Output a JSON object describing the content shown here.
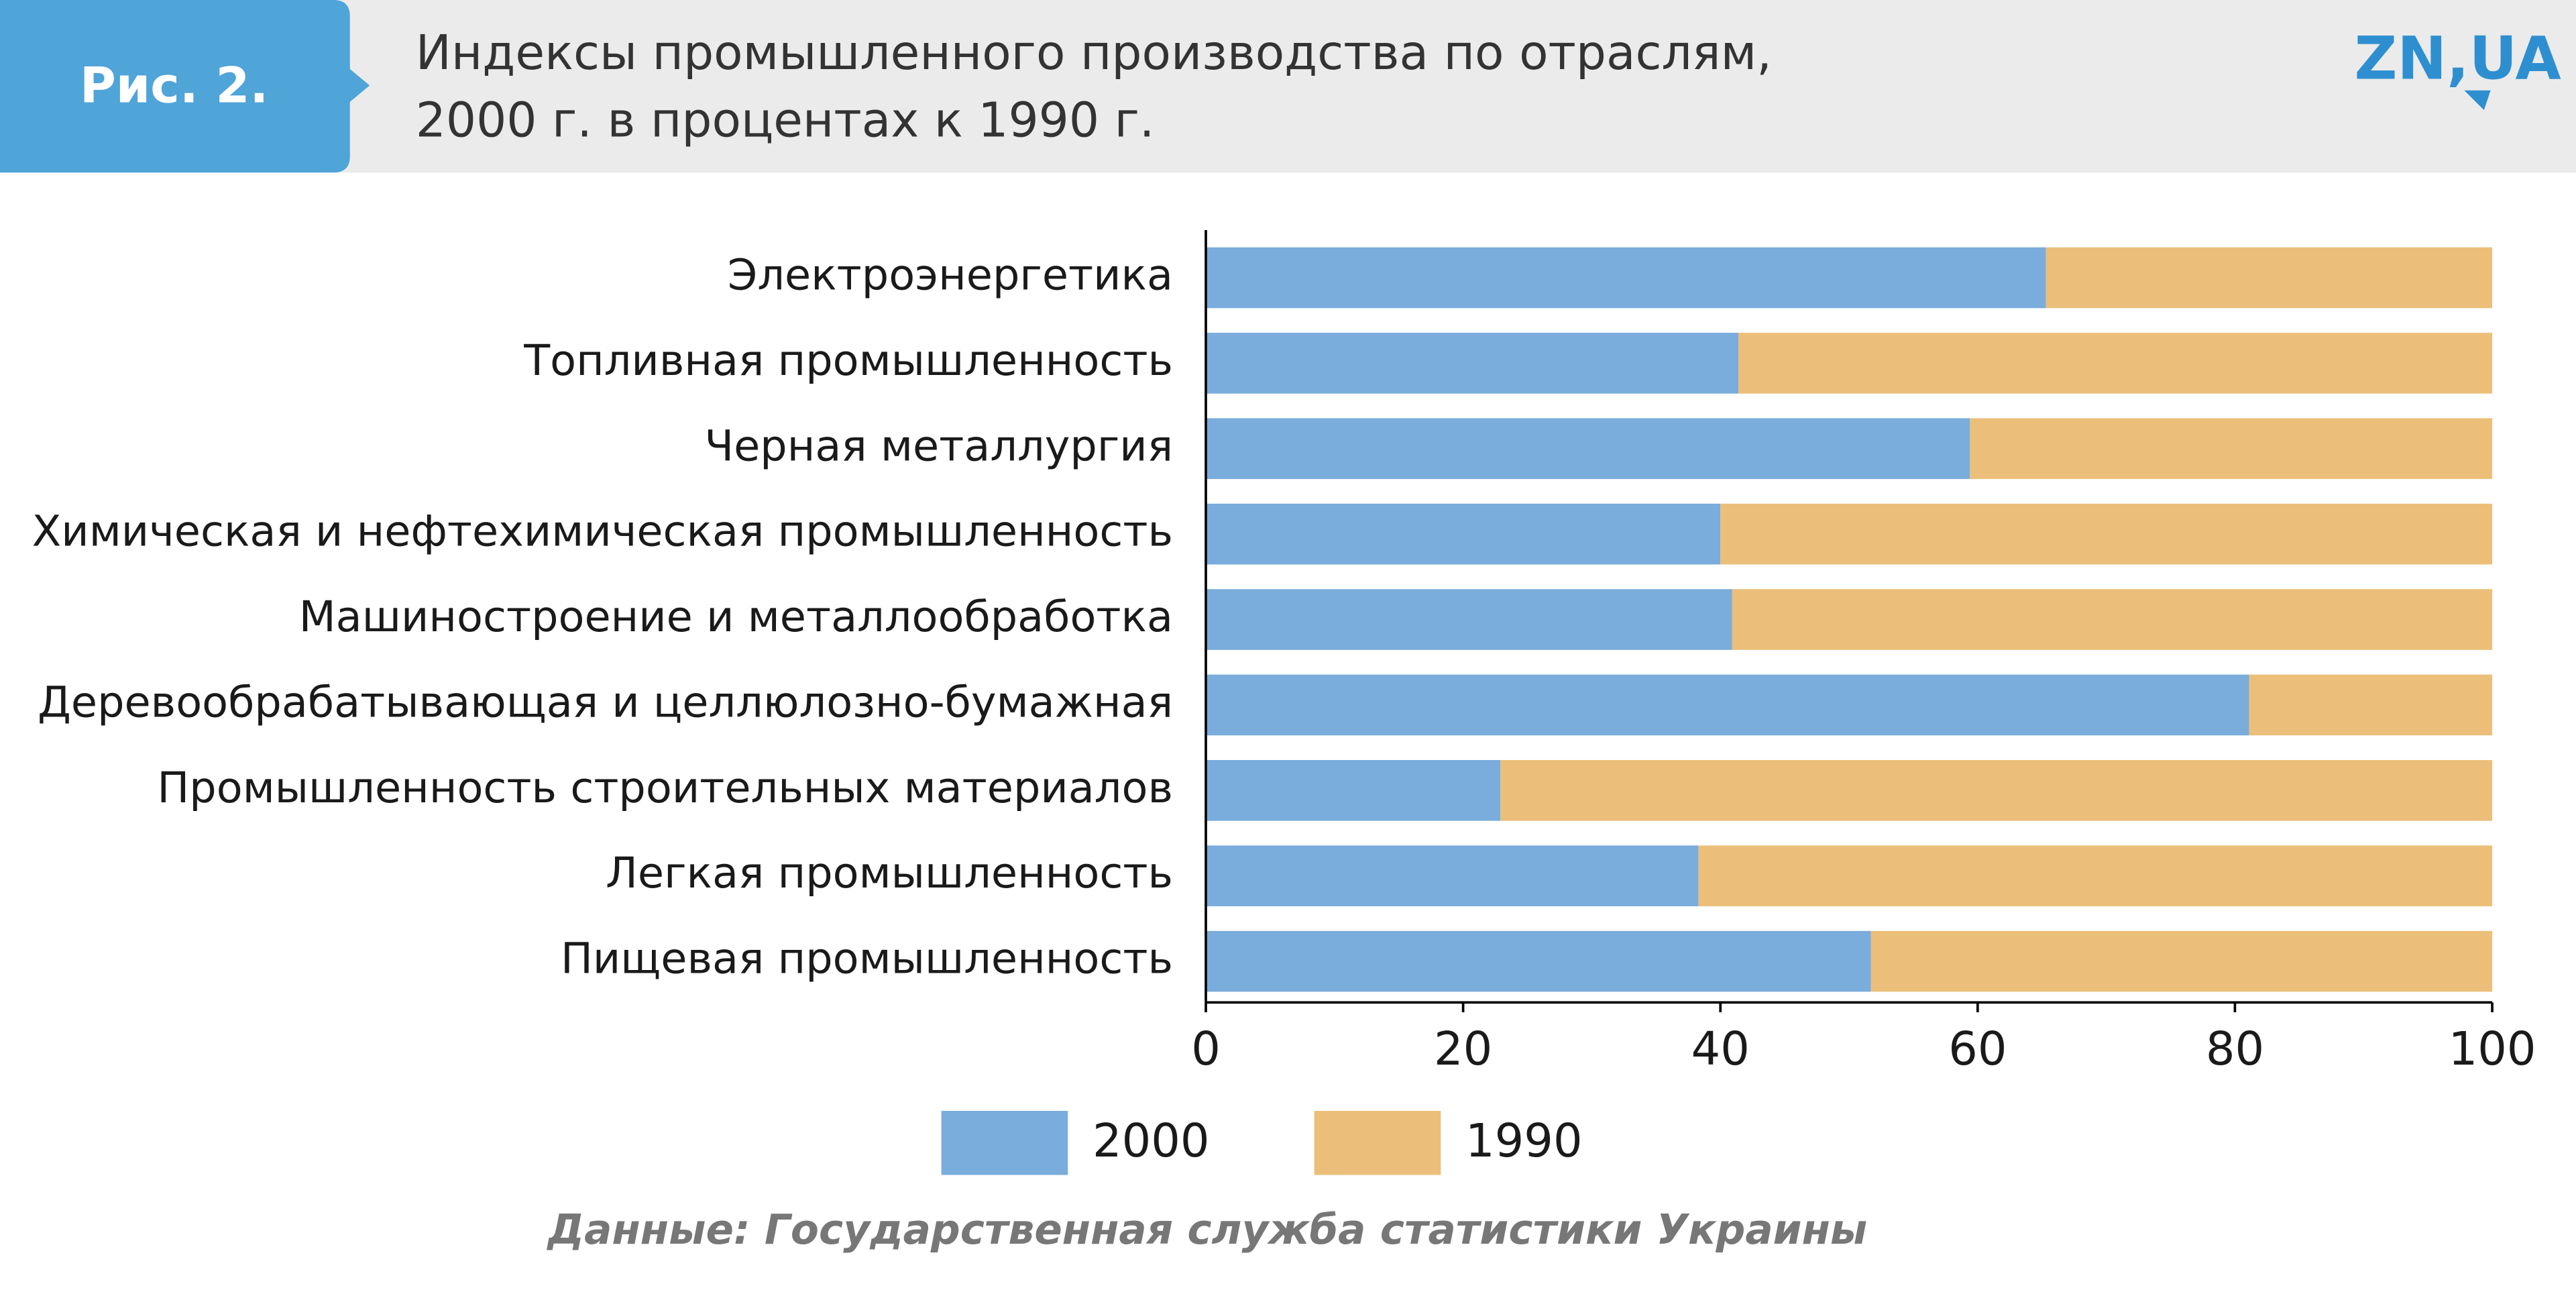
{
  "chart_data": {
    "type": "stacked_barh",
    "figure_label": "Рис. 2.",
    "title": [
      "Индексы промышленного производства по отраслям,",
      "2000 г. в процентах к 1990 г."
    ],
    "logo": "ZN,UA",
    "source": "Данные: Государственная служба статистики Украины",
    "categories": [
      "Электроэнергетика",
      "Топливная промышленность",
      "Черная металлургия",
      "Химическая и нефтехимическая промышленность",
      "Машиностроение и металлообработка",
      "Деревообрабатывающая и целлюлозно-бумажная",
      "Промышленность строительных материалов",
      "Легкая промышленность",
      "Пищевая промышленность"
    ],
    "series": [
      {
        "name": "2000",
        "color": "#7aacdc",
        "values": [
          65.3,
          41.4,
          59.4,
          40.0,
          40.9,
          81.1,
          22.9,
          38.3,
          51.7
        ]
      },
      {
        "name": "1990",
        "color": "#ebbf7a",
        "values": [
          34.7,
          58.6,
          40.6,
          60.0,
          59.1,
          18.9,
          77.1,
          61.7,
          48.3
        ]
      }
    ],
    "xlim": [
      0,
      100
    ],
    "xticks": [
      0,
      20,
      40,
      60,
      80,
      100
    ]
  }
}
